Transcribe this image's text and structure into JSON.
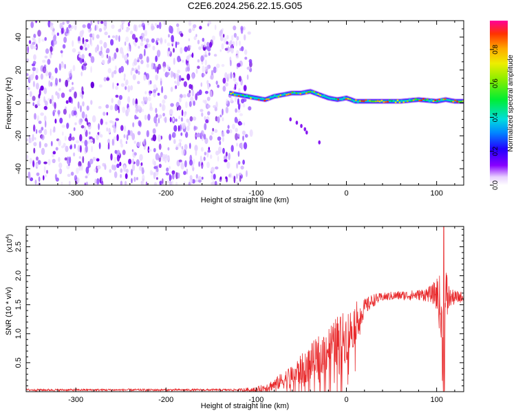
{
  "title": "C2E6.2024.256.22.15.G05",
  "chart_data": [
    {
      "type": "heatmap",
      "xlabel": "Height of straight line (km)",
      "ylabel": "Frequency (Hz)",
      "xlim": [
        -355,
        130
      ],
      "ylim": [
        -50,
        50
      ],
      "xticks": [
        -300,
        -200,
        -100,
        0,
        100
      ],
      "yticks": [
        -40,
        -20,
        0,
        20,
        40
      ],
      "noise_region_x": [
        -355,
        -115
      ],
      "signal_track": {
        "x": [
          -130,
          -120,
          -110,
          -100,
          -90,
          -80,
          -70,
          -60,
          -50,
          -40,
          -35,
          -30,
          -20,
          -10,
          0,
          10,
          20,
          40,
          60,
          80,
          100,
          110,
          120,
          130
        ],
        "y": [
          6,
          5,
          4,
          3,
          2,
          4,
          5,
          6,
          6,
          7,
          6,
          5,
          3,
          2,
          3,
          1,
          1,
          1,
          1,
          2,
          1,
          2,
          1,
          1
        ]
      },
      "secondary_track": {
        "x": [
          -62,
          -55,
          -50,
          -46,
          -44,
          -30
        ],
        "y": [
          -10,
          -12,
          -14,
          -16,
          -18,
          -24
        ]
      },
      "colorbar": {
        "label": "Normalized spectral amplitude",
        "range": [
          0,
          0.97
        ],
        "ticks": [
          0.0,
          0.2,
          0.4,
          0.6,
          0.8
        ]
      }
    },
    {
      "type": "line",
      "xlabel": "Height of straight line (km)",
      "ylabel": "SNR (10 * v/v)",
      "y_multiplier": "(x10",
      "y_multiplier_exp": "4",
      "y_multiplier_close": ")",
      "xlim": [
        -355,
        130
      ],
      "ylim": [
        0,
        28500
      ],
      "xticks": [
        -300,
        -200,
        -100,
        0,
        100
      ],
      "yticks": [
        5000,
        10000,
        15000,
        20000,
        25000
      ],
      "ytick_labels": [
        "0.5",
        "1.0",
        "1.5",
        "2.0",
        "2.5"
      ],
      "series": [
        {
          "color": "#e8292b",
          "envelope": {
            "x": [
              -355,
              -120,
              -100,
              -90,
              -80,
              -70,
              -60,
              -50,
              -40,
              -30,
              -20,
              -10,
              0,
              5,
              10,
              20,
              30,
              40,
              50,
              60,
              70,
              80,
              90,
              100,
              103,
              105,
              107,
              108,
              110,
              115,
              120,
              125,
              130
            ],
            "y": [
              300,
              300,
              400,
              700,
              1200,
              2000,
              2800,
              3800,
              5000,
              6200,
              7500,
              8800,
              9500,
              10500,
              12000,
              14500,
              15800,
              16300,
              16500,
              16600,
              16600,
              16700,
              16800,
              16900,
              15500,
              12000,
              7000,
              2500,
              16000,
              16200,
              16200,
              16300,
              16400
            ]
          },
          "spread": {
            "x": [
              -355,
              -120,
              -100,
              -80,
              -60,
              -40,
              -20,
              0,
              10,
              20,
              40,
              80,
              95,
              100,
              105,
              108,
              110,
              115,
              130
            ],
            "y": [
              200,
              200,
              400,
              1000,
              2000,
              3200,
              4000,
              4500,
              3500,
              1500,
              700,
              900,
              1500,
              3000,
              6000,
              9000,
              6000,
              1500,
              800
            ]
          },
          "peak": {
            "x": 108,
            "y": 28500
          }
        }
      ]
    }
  ]
}
